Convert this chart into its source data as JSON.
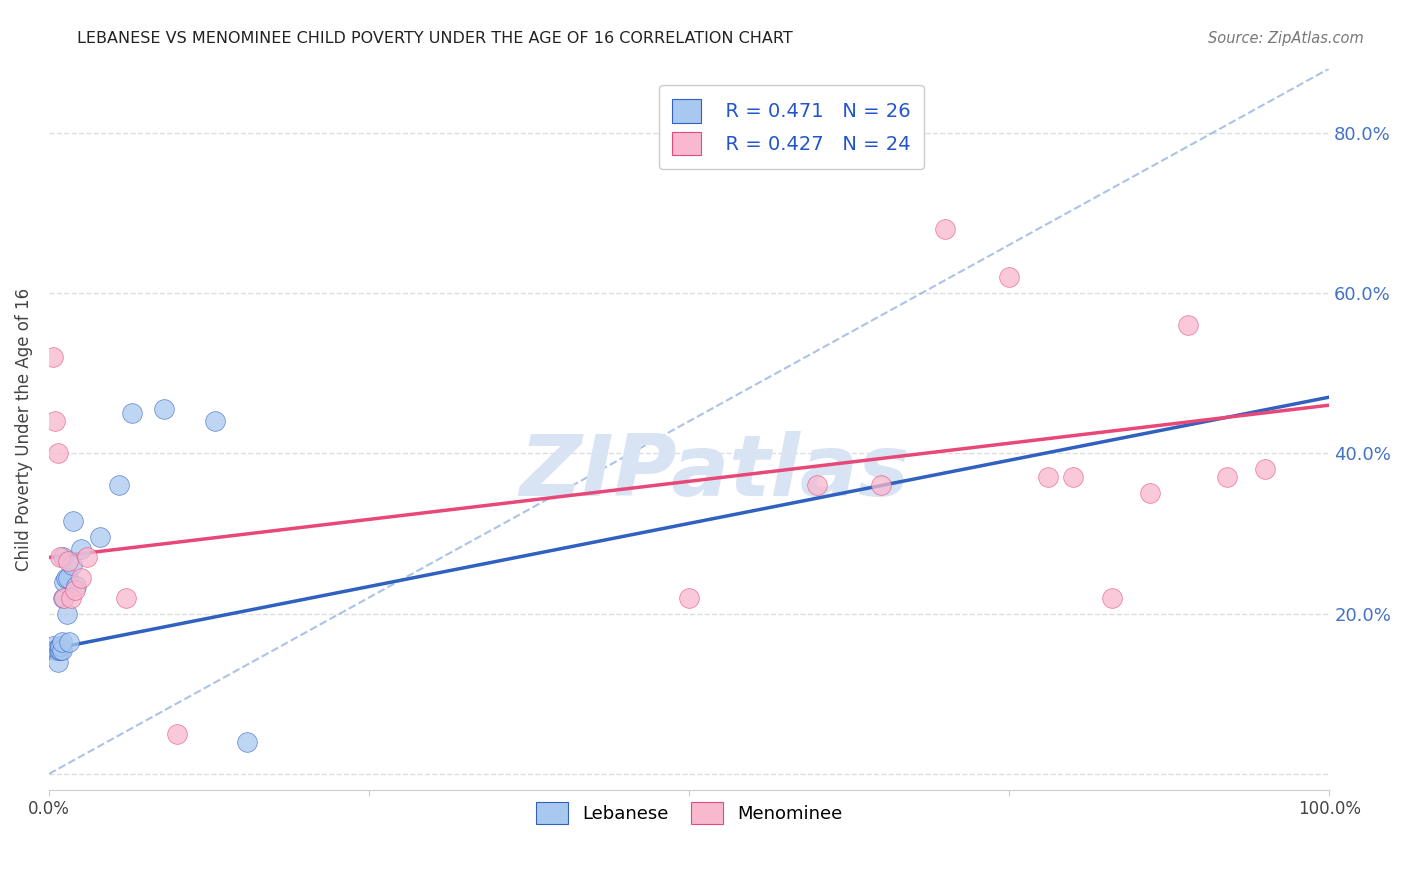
{
  "title": "LEBANESE VS MENOMINEE CHILD POVERTY UNDER THE AGE OF 16 CORRELATION CHART",
  "source_text": "Source: ZipAtlas.com",
  "ylabel": "Child Poverty Under the Age of 16",
  "xlim": [
    0,
    1.0
  ],
  "ylim": [
    -0.02,
    0.88
  ],
  "color_blue_fill": "#A8C8F0",
  "color_pink_fill": "#F8B8CE",
  "color_line_blue": "#3060C0",
  "color_line_pink": "#E84878",
  "color_diag": "#88AADD",
  "color_title": "#222222",
  "color_source": "#777777",
  "color_legend_text_rn": "#2255CC",
  "color_legend_text_n": "#2255CC",
  "color_ytick": "#4472C4",
  "watermark_color": "#D8E4F4",
  "background_color": "#FFFFFF",
  "grid_color": "#DDDDDD",
  "lebanese_x": [
    0.003,
    0.005,
    0.006,
    0.007,
    0.008,
    0.009,
    0.009,
    0.01,
    0.01,
    0.011,
    0.011,
    0.012,
    0.013,
    0.014,
    0.015,
    0.016,
    0.018,
    0.019,
    0.021,
    0.025,
    0.04,
    0.055,
    0.065,
    0.09,
    0.13,
    0.155
  ],
  "lebanese_y": [
    0.16,
    0.155,
    0.155,
    0.14,
    0.155,
    0.155,
    0.16,
    0.155,
    0.165,
    0.22,
    0.27,
    0.24,
    0.245,
    0.2,
    0.245,
    0.165,
    0.26,
    0.315,
    0.235,
    0.28,
    0.295,
    0.36,
    0.45,
    0.455,
    0.44,
    0.04
  ],
  "menominee_x": [
    0.003,
    0.005,
    0.007,
    0.009,
    0.012,
    0.015,
    0.017,
    0.02,
    0.025,
    0.03,
    0.06,
    0.1,
    0.5,
    0.6,
    0.65,
    0.7,
    0.75,
    0.78,
    0.8,
    0.83,
    0.86,
    0.89,
    0.92,
    0.95
  ],
  "menominee_y": [
    0.52,
    0.44,
    0.4,
    0.27,
    0.22,
    0.265,
    0.22,
    0.23,
    0.245,
    0.27,
    0.22,
    0.05,
    0.22,
    0.36,
    0.36,
    0.68,
    0.62,
    0.37,
    0.37,
    0.22,
    0.35,
    0.56,
    0.37,
    0.38
  ],
  "blue_line_x": [
    0.0,
    1.0
  ],
  "blue_line_y": [
    0.155,
    0.47
  ],
  "pink_line_x": [
    0.0,
    1.0
  ],
  "pink_line_y": [
    0.27,
    0.46
  ],
  "diag_line_x": [
    0.0,
    1.0
  ],
  "diag_line_y": [
    0.0,
    0.88
  ]
}
